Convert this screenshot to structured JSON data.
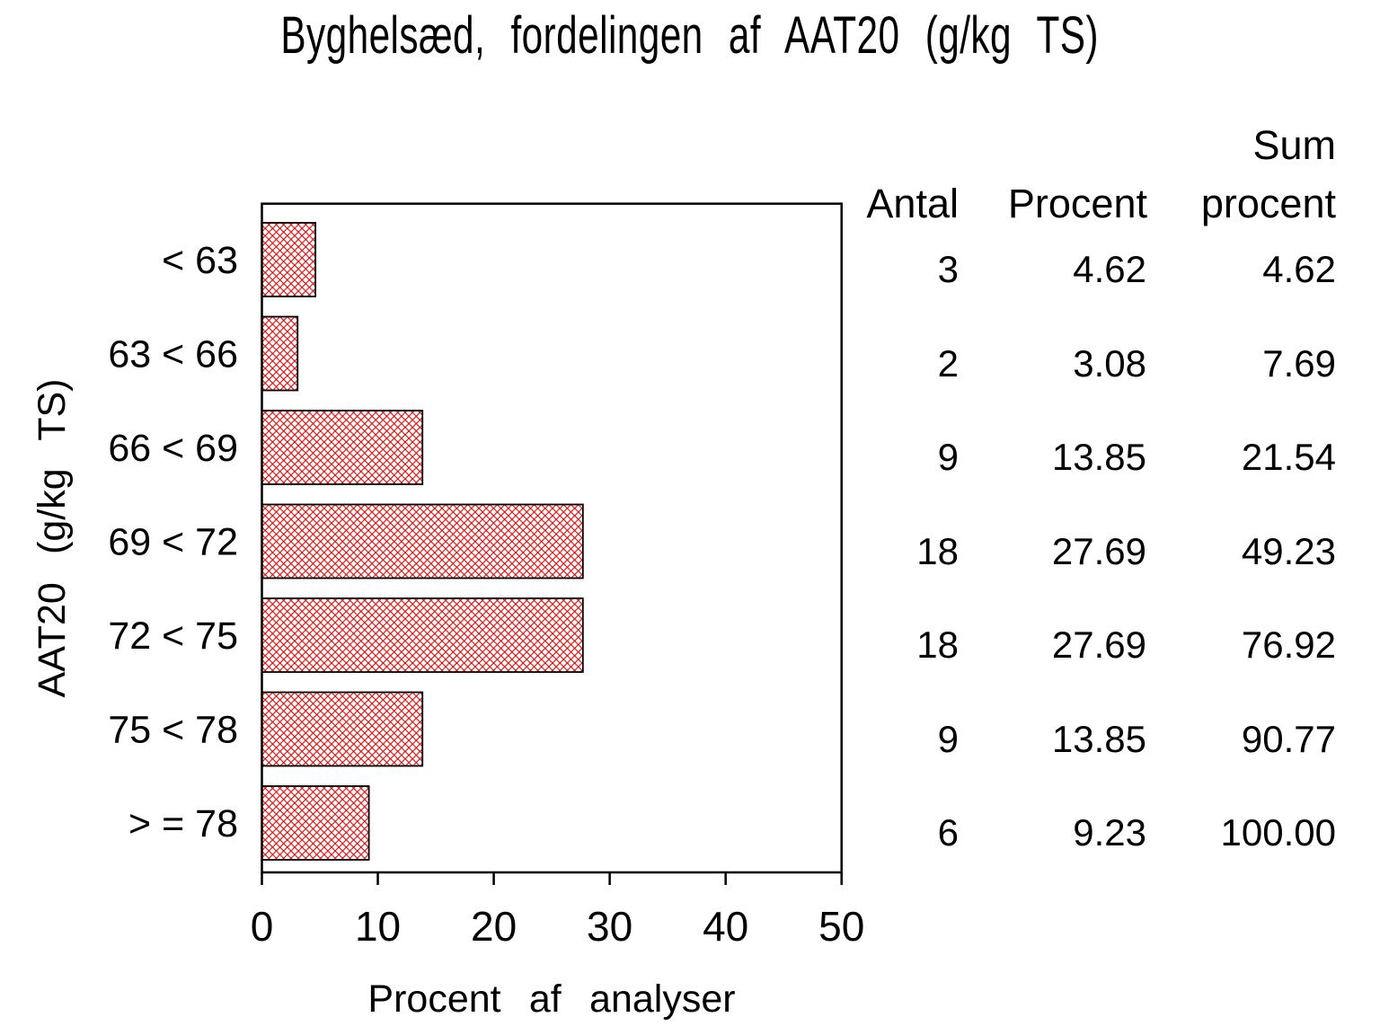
{
  "chart_data": {
    "type": "bar",
    "orientation": "horizontal",
    "title": "Byghelsæd, fordelingen af AAT20 (g/kg TS)",
    "xlabel": "Procent af analyser",
    "ylabel": "AAT20 (g/kg TS)",
    "categories": [
      "< 63",
      "63 < 66",
      "66 < 69",
      "69 < 72",
      "72 < 75",
      "75 < 78",
      "> = 78"
    ],
    "series": [
      {
        "name": "Procent af analyser",
        "values": [
          4.62,
          3.08,
          13.85,
          27.69,
          27.69,
          13.85,
          9.23
        ]
      },
      {
        "name": "Antal",
        "values": [
          3,
          2,
          9,
          18,
          18,
          9,
          6
        ]
      },
      {
        "name": "Sum procent",
        "values": [
          4.62,
          7.69,
          21.54,
          49.23,
          76.92,
          90.77,
          100.0
        ]
      }
    ],
    "xlim": [
      0,
      50
    ],
    "xticks": [
      0,
      10,
      20,
      30,
      40,
      50
    ],
    "grid": false,
    "legend": false,
    "bar_style": {
      "hatch": "diagonal-crosshatch",
      "hatch_color": "#e00000",
      "border_color": "#000000",
      "plot_background": "#ffffff",
      "frame_color": "#000000"
    }
  },
  "table": {
    "headers": {
      "antal": "Antal",
      "procent": "Procent",
      "sum_line1": "Sum",
      "sum_line2": "procent"
    },
    "rows": [
      [
        "3",
        "4.62",
        "4.62"
      ],
      [
        "2",
        "3.08",
        "7.69"
      ],
      [
        "9",
        "13.85",
        "21.54"
      ],
      [
        "18",
        "27.69",
        "49.23"
      ],
      [
        "18",
        "27.69",
        "76.92"
      ],
      [
        "9",
        "13.85",
        "90.77"
      ],
      [
        "6",
        "9.23",
        "100.00"
      ]
    ]
  }
}
